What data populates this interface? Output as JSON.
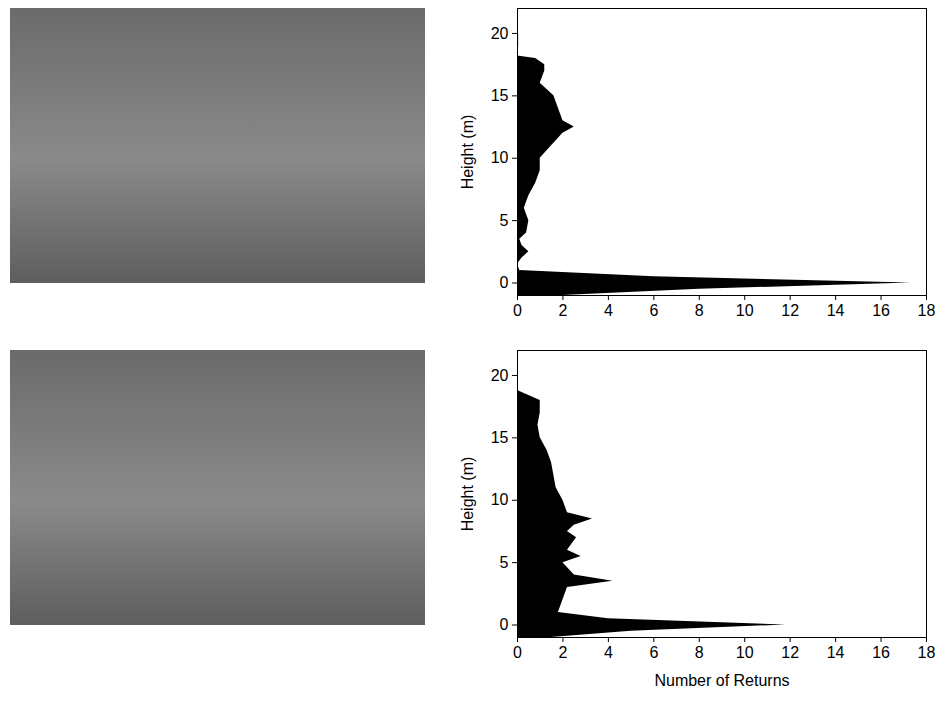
{
  "chart_data": [
    {
      "type": "area",
      "orientation": "horizontal",
      "color": "#000000",
      "y_label": "Height (m)",
      "y": [
        -1,
        -0.5,
        0,
        0.5,
        1,
        1.5,
        2,
        2.5,
        3,
        3.5,
        4,
        5,
        6,
        7,
        8,
        9,
        10,
        11,
        12,
        12.5,
        13,
        14,
        15,
        16,
        17,
        17.5,
        18,
        18.2,
        19,
        20,
        20.5
      ],
      "values": [
        2,
        8,
        17.3,
        6,
        0.1,
        0,
        0.2,
        0.5,
        0.2,
        0.1,
        0.4,
        0.5,
        0.3,
        0.5,
        0.8,
        1.0,
        1.0,
        1.5,
        2.0,
        2.5,
        2.0,
        1.8,
        1.6,
        1.0,
        1.2,
        1.2,
        0.8,
        0,
        0.05,
        0.05,
        0
      ],
      "xlim": [
        0,
        18
      ],
      "xticks": [
        0,
        2,
        4,
        6,
        8,
        10,
        12,
        14,
        16,
        18
      ],
      "ylim": [
        -1,
        22
      ],
      "yticks": [
        0,
        5,
        10,
        15,
        20
      ]
    },
    {
      "type": "area",
      "orientation": "horizontal",
      "color": "#000000",
      "y_label": "Height (m)",
      "x_label": "Number of Returns",
      "y": [
        -1,
        -0.5,
        0,
        0.5,
        1,
        2,
        3,
        3.5,
        4,
        5,
        5.5,
        6,
        7,
        7.5,
        8,
        8.5,
        9,
        10,
        11,
        12,
        13,
        14,
        15,
        16,
        17,
        18,
        18.8
      ],
      "values": [
        1.5,
        5,
        11.8,
        4,
        1.8,
        2,
        2.2,
        4.2,
        2.5,
        2,
        2.8,
        2.2,
        2.6,
        2.2,
        2.5,
        3.3,
        2.2,
        2.0,
        1.7,
        1.6,
        1.5,
        1.3,
        1.0,
        0.9,
        1.0,
        1.0,
        0
      ],
      "xlim": [
        0,
        18
      ],
      "xticks": [
        0,
        2,
        4,
        6,
        8,
        10,
        12,
        14,
        16,
        18
      ],
      "ylim": [
        -1,
        22
      ],
      "yticks": [
        0,
        5,
        10,
        15,
        20
      ]
    }
  ]
}
